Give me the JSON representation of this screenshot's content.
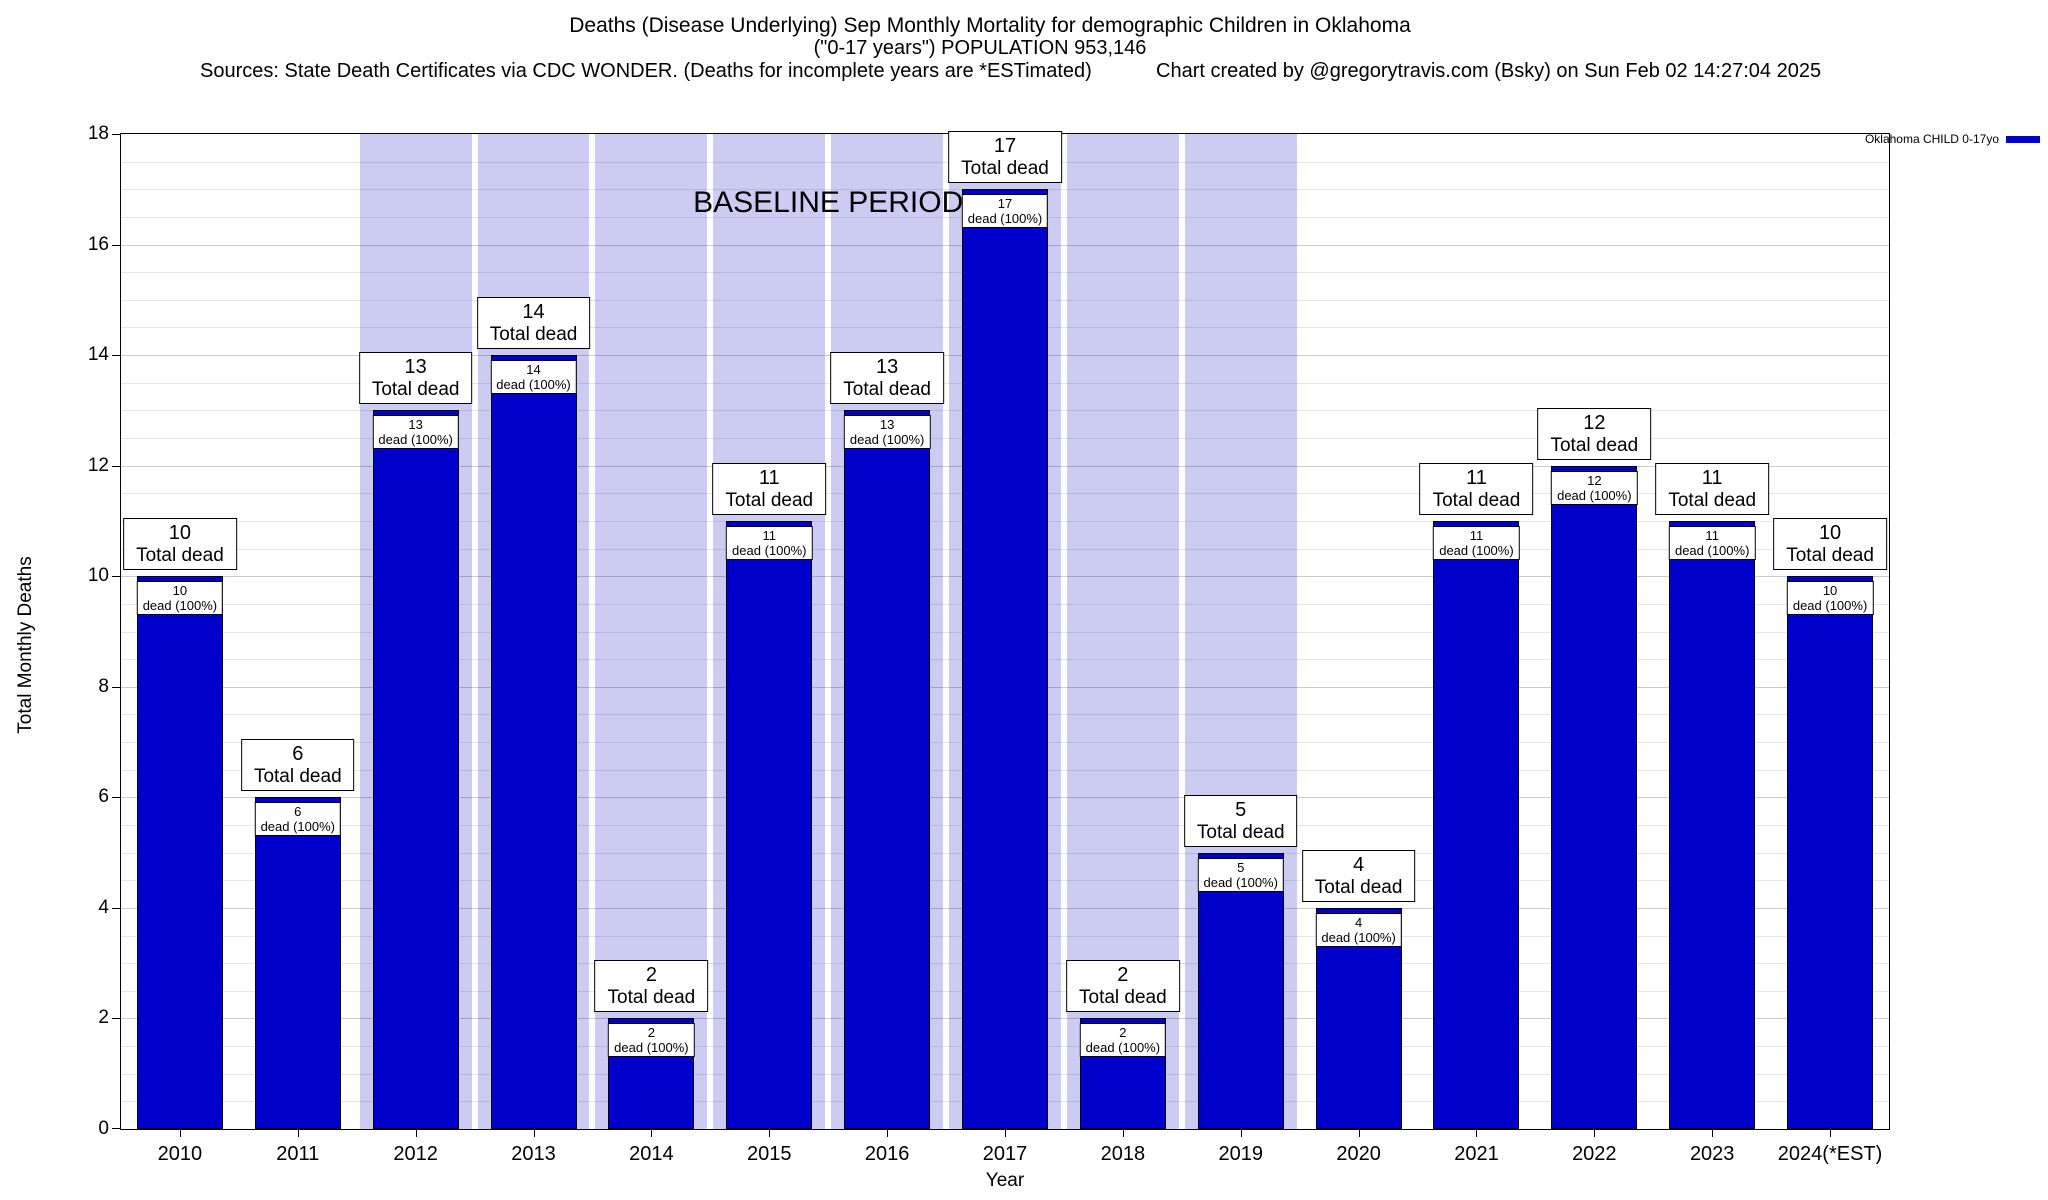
{
  "header": {
    "title_line1": "Deaths (Disease Underlying) Sep Monthly Mortality for demographic Children in Oklahoma",
    "title_line2": "(\"0-17 years\") POPULATION 953,146",
    "sources": "Sources: State Death Certificates via CDC WONDER. (Deaths for incomplete years are *ESTimated)",
    "credit": "Chart created by @gregorytravis.com (Bsky) on Sun Feb 02 14:27:04 2025"
  },
  "legend": {
    "label": "Oklahoma CHILD 0-17yo",
    "swatch_color": "#0000cd"
  },
  "chart_data": {
    "type": "bar",
    "title": "Deaths (Disease Underlying) Sep Monthly Mortality for demographic Children in Oklahoma (\"0-17 years\")",
    "categories": [
      "2010",
      "2011",
      "2012",
      "2013",
      "2014",
      "2015",
      "2016",
      "2017",
      "2018",
      "2019",
      "2020",
      "2021",
      "2022",
      "2023",
      "2024(*EST)"
    ],
    "values": [
      10,
      6,
      13,
      14,
      2,
      11,
      13,
      17,
      2,
      5,
      4,
      11,
      12,
      11,
      10
    ],
    "series": [
      {
        "name": "Oklahoma CHILD 0-17yo",
        "values": [
          10,
          6,
          13,
          14,
          2,
          11,
          13,
          17,
          2,
          5,
          4,
          11,
          12,
          11,
          10
        ]
      }
    ],
    "bar_color": "#0000cd",
    "xlabel": "Year",
    "ylabel": "Total Monthly Deaths",
    "ylim": [
      0,
      18
    ],
    "ytick_step": 2,
    "minor_grid_step": 0.5,
    "grid": true,
    "legend_position": "top-right",
    "annotations": {
      "total_suffix": "Total dead",
      "inner_suffix": "dead (100%)"
    },
    "baseline_band": {
      "label": "BASELINE PERIOD",
      "start_category": "2012",
      "end_category": "2019",
      "color": "#ccccf2"
    }
  }
}
